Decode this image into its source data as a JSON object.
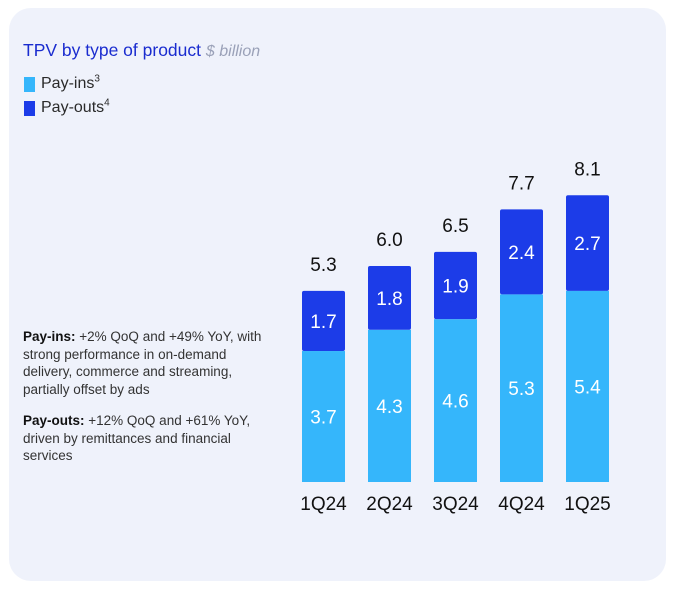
{
  "colors": {
    "payins": "#35b6fb",
    "payouts": "#1c3ce8",
    "title": "#1a2ccf",
    "card": "#eff2fb"
  },
  "header": {
    "title": "TPV by type of product",
    "unit": "$ billion"
  },
  "legend": [
    {
      "label": "Pay-ins",
      "sup": "3",
      "color": "#35b6fb"
    },
    {
      "label": "Pay-outs",
      "sup": "4",
      "color": "#1c3ce8"
    }
  ],
  "notes": {
    "payins_bold": "Pay-ins:",
    "payins_text": " +2% QoQ and +49% YoY, with strong performance in on-demand delivery, commerce and streaming, partially offset by ads",
    "payouts_bold": "Pay-outs:",
    "payouts_text": " +12% QoQ and +61% YoY, driven by remittances and financial services"
  },
  "chart_data": {
    "type": "bar",
    "stacked": true,
    "title": "TPV by type of product",
    "ylabel": "$ billion",
    "categories": [
      "1Q24",
      "2Q24",
      "3Q24",
      "4Q24",
      "1Q25"
    ],
    "series": [
      {
        "name": "Pay-ins",
        "values": [
          3.7,
          4.3,
          4.6,
          5.3,
          5.4
        ]
      },
      {
        "name": "Pay-outs",
        "values": [
          1.7,
          1.8,
          1.9,
          2.4,
          2.7
        ]
      }
    ],
    "totals": [
      5.3,
      6.0,
      6.5,
      7.7,
      8.1
    ],
    "value_labels": {
      "payins": [
        "3.7",
        "4.3",
        "4.6",
        "5.3",
        "5.4"
      ],
      "payouts": [
        "1.7",
        "1.8",
        "1.9",
        "2.4",
        "2.7"
      ],
      "totals": [
        "5.3",
        "6.0",
        "6.5",
        "7.7",
        "8.1"
      ]
    },
    "ylim": [
      0,
      8.1
    ]
  }
}
